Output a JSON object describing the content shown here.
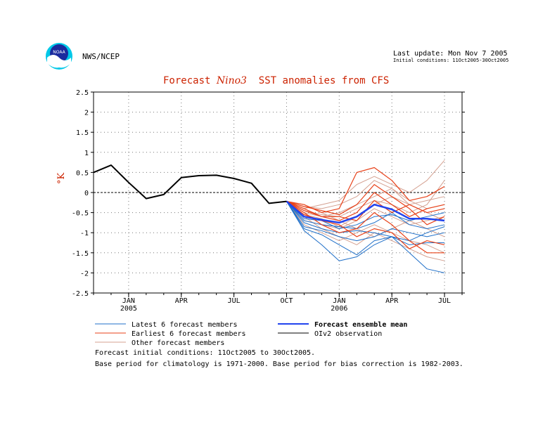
{
  "header": {
    "org": "NWS/NCEP",
    "last_update": "Last update: Mon Nov 7 2005",
    "initial_conditions_small": "Initial conditions: 11Oct2005-30Oct2005"
  },
  "footer": {
    "line1": "Forecast initial conditions: 11Oct2005 to 30Oct2005.",
    "line2": "Base period for climatology is 1971-2000. Base period for bias correction is 1982-2003."
  },
  "chart_data": {
    "type": "line",
    "title_pre": "Forecast ",
    "title_italic": "Nino3",
    "title_post": "  SST anomalies from CFS",
    "ylabel": "°K",
    "ylim": [
      -2.5,
      2.5
    ],
    "yticks": [
      "2.5",
      "2",
      "1.5",
      "1",
      "0.5",
      "0",
      "-0.5",
      "-1",
      "-1.5",
      "-2",
      "-2.5"
    ],
    "ytick_values": [
      2.5,
      2,
      1.5,
      1,
      0.5,
      0,
      -0.5,
      -1,
      -1.5,
      -2,
      -2.5
    ],
    "xlim": [
      0,
      21
    ],
    "xticks": [
      {
        "x": 2,
        "label": "JAN",
        "sub": "2005"
      },
      {
        "x": 5,
        "label": "APR",
        "sub": ""
      },
      {
        "x": 8,
        "label": "JUL",
        "sub": ""
      },
      {
        "x": 11,
        "label": "OCT",
        "sub": ""
      },
      {
        "x": 14,
        "label": "JAN",
        "sub": "2006"
      },
      {
        "x": 17,
        "label": "APR",
        "sub": ""
      },
      {
        "x": 20,
        "label": "JUL",
        "sub": ""
      }
    ],
    "grid": true,
    "colors": {
      "latest": "#1f6fc8",
      "earliest": "#e8421a",
      "other": "#d4a090",
      "mean": "#2244ee",
      "obs": "#000000",
      "title": "#cc2200"
    },
    "observation": {
      "name": "OIv2 observation",
      "x": [
        0,
        1,
        2,
        3,
        4,
        5,
        6,
        7,
        8,
        9,
        10,
        11
      ],
      "y": [
        0.5,
        0.68,
        0.25,
        -0.15,
        -0.05,
        0.37,
        0.42,
        0.43,
        0.35,
        0.23,
        -0.27,
        -0.22
      ]
    },
    "ensemble_mean": {
      "name": "Forecast ensemble mean",
      "x": [
        11,
        12,
        13,
        14,
        15,
        16,
        17,
        18,
        19,
        20
      ],
      "y": [
        -0.22,
        -0.6,
        -0.68,
        -0.75,
        -0.6,
        -0.3,
        -0.42,
        -0.65,
        -0.65,
        -0.7
      ]
    },
    "latest": {
      "name": "Latest 6 forecast members",
      "x": [
        11,
        12,
        13,
        14,
        15,
        16,
        17,
        18,
        19,
        20
      ],
      "members": [
        [
          -0.22,
          -0.95,
          -1.3,
          -1.7,
          -1.6,
          -1.3,
          -1.1,
          -1.5,
          -1.9,
          -2.0
        ],
        [
          -0.22,
          -0.9,
          -1.05,
          -1.3,
          -1.55,
          -1.2,
          -1.1,
          -1.3,
          -1.25,
          -1.25
        ],
        [
          -0.22,
          -0.7,
          -0.8,
          -0.85,
          -0.9,
          -0.75,
          -0.5,
          -0.8,
          -0.9,
          -0.8
        ],
        [
          -0.22,
          -0.75,
          -0.9,
          -1.0,
          -0.95,
          -1.0,
          -1.1,
          -1.2,
          -1.0,
          -0.85
        ],
        [
          -0.22,
          -0.65,
          -0.7,
          -0.9,
          -0.8,
          -0.6,
          -0.55,
          -0.7,
          -0.6,
          -0.5
        ],
        [
          -0.22,
          -0.85,
          -0.95,
          -1.1,
          -1.2,
          -1.1,
          -0.9,
          -1.0,
          -1.1,
          -1.0
        ]
      ]
    },
    "earliest": {
      "name": "Earliest 6 forecast members",
      "x": [
        11,
        12,
        13,
        14,
        15,
        16,
        17,
        18,
        19,
        20
      ],
      "members": [
        [
          -0.22,
          -0.3,
          -0.5,
          -0.4,
          0.5,
          0.62,
          0.3,
          -0.2,
          -0.1,
          0.15
        ],
        [
          -0.22,
          -0.4,
          -0.6,
          -0.7,
          -0.5,
          0.0,
          -0.3,
          -0.6,
          -0.4,
          -0.3
        ],
        [
          -0.22,
          -0.5,
          -0.8,
          -1.0,
          -0.9,
          -0.5,
          -0.8,
          -1.2,
          -1.5,
          -1.5
        ],
        [
          -0.22,
          -0.35,
          -0.45,
          -0.55,
          -0.3,
          0.2,
          -0.1,
          -0.4,
          -0.8,
          -0.6
        ],
        [
          -0.22,
          -0.55,
          -0.7,
          -0.8,
          -1.1,
          -0.9,
          -1.0,
          -1.4,
          -1.2,
          -1.3
        ],
        [
          -0.22,
          -0.45,
          -0.6,
          -0.6,
          -0.7,
          -0.2,
          -0.5,
          -0.3,
          -0.5,
          -0.4
        ]
      ]
    },
    "other": {
      "name": "Other forecast members",
      "x": [
        11,
        12,
        13,
        14,
        15,
        16,
        17,
        18,
        19,
        20
      ],
      "members": [
        [
          -0.22,
          -0.4,
          -0.3,
          -0.2,
          0.2,
          0.4,
          0.2,
          0.0,
          0.3,
          0.8
        ],
        [
          -0.22,
          -0.6,
          -0.9,
          -1.1,
          -1.3,
          -1.0,
          -1.2,
          -1.4,
          -1.6,
          -1.7
        ],
        [
          -0.22,
          -0.5,
          -0.6,
          -0.5,
          -0.3,
          -0.1,
          0.1,
          -0.2,
          -0.4,
          -0.3
        ],
        [
          -0.22,
          -0.7,
          -0.8,
          -0.9,
          -0.7,
          -0.4,
          -0.6,
          -0.8,
          -0.7,
          -0.6
        ],
        [
          -0.22,
          -0.3,
          -0.5,
          -0.7,
          -0.9,
          -1.1,
          -0.9,
          -0.7,
          -0.9,
          -1.1
        ],
        [
          -0.22,
          -0.45,
          -0.55,
          -0.6,
          -0.4,
          -0.2,
          -0.3,
          -0.5,
          -0.3,
          0.3
        ],
        [
          -0.22,
          -0.8,
          -1.0,
          -1.2,
          -1.0,
          -0.8,
          -1.0,
          -1.2,
          -1.3,
          -1.5
        ],
        [
          -0.22,
          -0.55,
          -0.65,
          -0.85,
          -0.6,
          -0.3,
          -0.1,
          -0.3,
          -0.2,
          -0.1
        ],
        [
          -0.22,
          -0.35,
          -0.4,
          -0.3,
          -0.1,
          0.3,
          0.1,
          -0.3,
          -0.5,
          -0.7
        ]
      ]
    }
  }
}
